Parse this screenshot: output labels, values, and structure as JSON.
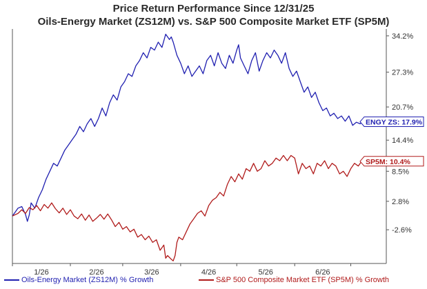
{
  "chart_data": {
    "type": "line",
    "title": "Price Return Performance Since 12/31/25",
    "subtitle": "Oils-Energy Market (ZS12M)  vs.  S&P 500 Composite Market ETF (SP5M)",
    "x_tick_labels": [
      "1/26",
      "2/26",
      "3/26",
      "4/26",
      "5/26",
      "6/26"
    ],
    "y_tick_labels": [
      "34.2%",
      "27.3%",
      "20.7%",
      "14.4%",
      "8.5%",
      "2.8%",
      "-2.6%"
    ],
    "y_tick_values": [
      34.2,
      27.3,
      20.7,
      14.4,
      8.5,
      2.8,
      -2.6
    ],
    "ylim": [
      -9.0,
      35.5
    ],
    "x_range_days": [
      0,
      200
    ],
    "grid": false,
    "legend_position": "bottom",
    "series": [
      {
        "name": "Oils-Energy Market (ZS12M) % Growth",
        "color": "#1f1fb0",
        "end_label": "ENGY ZS: 17.9%",
        "x": [
          0,
          3,
          5,
          7,
          8,
          9,
          10,
          12,
          14,
          16,
          18,
          20,
          22,
          24,
          26,
          28,
          30,
          32,
          34,
          36,
          38,
          40,
          42,
          44,
          46,
          48,
          50,
          52,
          54,
          56,
          58,
          60,
          62,
          64,
          66,
          68,
          70,
          72,
          74,
          76,
          78,
          80,
          82,
          84,
          85,
          86,
          88,
          90,
          92,
          94,
          96,
          98,
          100,
          102,
          104,
          106,
          108,
          110,
          112,
          114,
          116,
          118,
          120,
          121,
          122,
          124,
          126,
          128,
          130,
          132,
          134,
          136,
          138,
          140,
          142,
          144,
          146,
          148,
          150,
          152,
          154,
          156,
          158,
          160,
          162,
          164,
          166,
          168,
          170,
          172,
          174,
          176,
          178,
          180,
          182,
          184,
          186,
          188,
          190
        ],
        "y": [
          0.0,
          1.5,
          1.8,
          0.3,
          -1.0,
          0.2,
          2.5,
          1.5,
          3.5,
          5.0,
          7.0,
          8.5,
          10.0,
          9.5,
          11.0,
          12.5,
          13.5,
          14.5,
          15.5,
          17.0,
          16.0,
          17.5,
          18.5,
          17.0,
          18.5,
          20.5,
          19.0,
          21.5,
          23.0,
          22.0,
          24.5,
          25.5,
          27.0,
          26.5,
          28.5,
          29.5,
          31.0,
          30.0,
          32.0,
          31.5,
          33.0,
          32.0,
          34.5,
          33.5,
          34.0,
          33.0,
          30.5,
          29.0,
          27.0,
          28.5,
          26.5,
          27.5,
          28.5,
          27.0,
          29.5,
          30.5,
          28.5,
          31.0,
          29.0,
          28.0,
          30.5,
          29.0,
          31.5,
          32.5,
          30.0,
          28.5,
          27.0,
          29.5,
          31.0,
          27.5,
          29.5,
          31.0,
          30.0,
          31.5,
          30.5,
          29.0,
          31.0,
          28.0,
          26.5,
          27.5,
          25.5,
          23.5,
          24.5,
          22.5,
          23.5,
          21.5,
          20.0,
          20.5,
          19.0,
          19.5,
          18.5,
          19.0,
          18.0,
          19.0,
          17.2,
          17.8,
          17.5,
          18.2,
          17.9
        ]
      },
      {
        "name": "S&P 500 Composite Market ETF (SP5M) % Growth",
        "color": "#b01a1a",
        "end_label": "SP5M: 10.4%",
        "x": [
          0,
          3,
          5,
          7,
          9,
          11,
          13,
          15,
          17,
          19,
          21,
          23,
          25,
          27,
          29,
          31,
          33,
          35,
          37,
          39,
          41,
          43,
          45,
          47,
          49,
          51,
          53,
          55,
          57,
          59,
          61,
          63,
          65,
          67,
          69,
          71,
          73,
          75,
          77,
          79,
          81,
          82,
          83,
          85,
          86,
          87,
          88,
          89,
          91,
          93,
          95,
          97,
          99,
          101,
          103,
          105,
          107,
          109,
          111,
          113,
          115,
          117,
          119,
          121,
          123,
          125,
          127,
          129,
          131,
          133,
          135,
          137,
          139,
          141,
          143,
          145,
          147,
          149,
          151,
          153,
          155,
          157,
          159,
          161,
          163,
          165,
          167,
          169,
          171,
          173,
          175,
          177,
          179,
          181,
          183,
          185,
          187,
          189,
          190
        ],
        "y": [
          0.0,
          0.5,
          1.2,
          0.5,
          1.6,
          1.2,
          2.0,
          1.0,
          2.2,
          1.5,
          2.5,
          1.4,
          0.6,
          1.5,
          0.3,
          1.2,
          0.0,
          -0.5,
          0.4,
          -0.8,
          0.2,
          -1.0,
          -0.4,
          0.3,
          -0.6,
          0.4,
          -0.7,
          -2.0,
          -1.2,
          -2.5,
          -2.0,
          -3.0,
          -2.5,
          -4.0,
          -3.5,
          -4.5,
          -3.8,
          -5.0,
          -4.5,
          -6.5,
          -5.5,
          -8.0,
          -7.5,
          -8.2,
          -8.5,
          -7.5,
          -5.0,
          -4.0,
          -4.5,
          -3.0,
          -1.5,
          -0.5,
          0.5,
          1.0,
          0.0,
          2.0,
          3.0,
          3.5,
          4.5,
          3.8,
          6.0,
          7.5,
          6.5,
          8.0,
          7.0,
          9.0,
          8.5,
          10.0,
          8.5,
          9.0,
          10.5,
          9.5,
          10.0,
          11.0,
          10.5,
          11.5,
          10.5,
          11.5,
          11.0,
          8.0,
          10.0,
          9.0,
          9.5,
          8.0,
          10.0,
          9.5,
          10.5,
          9.0,
          10.0,
          9.5,
          8.0,
          8.5,
          7.5,
          9.0,
          10.0,
          9.5,
          10.5,
          10.0,
          10.4
        ]
      }
    ]
  }
}
